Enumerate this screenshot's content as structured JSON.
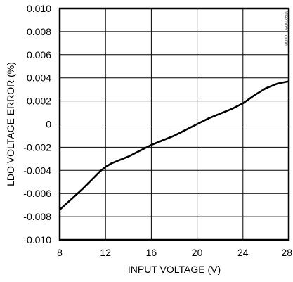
{
  "chart_data": {
    "type": "line",
    "xlabel": "INPUT VOLTAGE (V)",
    "ylabel": "LDO VOLTAGE ERROR (%)",
    "xlim": [
      8,
      28
    ],
    "ylim": [
      -0.01,
      0.01
    ],
    "x_ticks": [
      8,
      12,
      16,
      20,
      24,
      28
    ],
    "x_tick_labels": [
      "8",
      "12",
      "16",
      "20",
      "24",
      "28"
    ],
    "y_ticks": [
      0.01,
      0.008,
      0.006,
      0.004,
      0.002,
      0,
      -0.002,
      -0.004,
      -0.006,
      -0.008,
      -0.01
    ],
    "y_tick_labels": [
      "0.010",
      "0.008",
      "0.006",
      "0.004",
      "0.002",
      "0",
      "-0.002",
      "-0.004",
      "-0.006",
      "-0.008",
      "-0.010"
    ],
    "grid": true,
    "series": [
      {
        "color": "#000000",
        "x": [
          8,
          9,
          10,
          11,
          11.5,
          12,
          12.5,
          13,
          14,
          15,
          16,
          17,
          18,
          19,
          20,
          21,
          22,
          23,
          24,
          25,
          26,
          26.5,
          27,
          28
        ],
        "y": [
          -0.0074,
          -0.0065,
          -0.0056,
          -0.0046,
          -0.0041,
          -0.0037,
          -0.0034,
          -0.0032,
          -0.0028,
          -0.0023,
          -0.0018,
          -0.0014,
          -0.001,
          -0.0005,
          0.0,
          0.0005,
          0.0009,
          0.0013,
          0.0018,
          0.0025,
          0.0031,
          0.0033,
          0.0035,
          0.0037
        ]
      }
    ],
    "watermark": "MAX5090 toc06"
  }
}
